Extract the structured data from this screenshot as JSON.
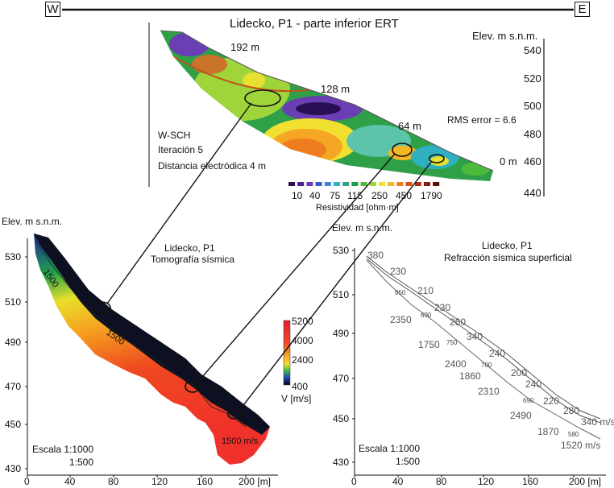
{
  "orientation": {
    "west": "W",
    "east": "E"
  },
  "ert": {
    "title": "Lidecko, P1 - parte inferior   ERT",
    "elev_label": "Elev. m s.n.m.",
    "elev_ticks": [
      "540",
      "520",
      "500",
      "480",
      "460",
      "440"
    ],
    "distance_labels": [
      "192 m",
      "128 m",
      "64 m",
      "0 m"
    ],
    "rms": "RMS error = 6.6",
    "method": "W-SCH",
    "iteration": "Iteración 5",
    "electrode_spacing": "Distancia electródica 4 m",
    "resistivity_ticks": [
      "10",
      "40",
      "75",
      "115",
      "250",
      "450",
      "1790"
    ],
    "resistivity_label": "Resistividad [ohm·m]",
    "resistivity_colors": [
      "#2a0f55",
      "#4b1e8e",
      "#6a3fb4",
      "#3d58c8",
      "#3f86d6",
      "#2fb0c0",
      "#2fa48a",
      "#1f9a4c",
      "#4cba3a",
      "#9fd43a",
      "#f2e030",
      "#f5b625",
      "#ef7d1f",
      "#e04a1c",
      "#b5291a",
      "#8c1a10",
      "#5b0c08"
    ]
  },
  "seismic": {
    "elev_label": "Elev. m s.n.m.",
    "title_line1": "Lidecko, P1",
    "title_line2": "Tomografía sísmica",
    "y_ticks": [
      "530",
      "510",
      "490",
      "470",
      "450",
      "430"
    ],
    "x_ticks": [
      "0",
      "40",
      "80",
      "120",
      "160",
      "200 [m]"
    ],
    "contour_labels": [
      "1500",
      "1500",
      "1500 m/s"
    ],
    "velocity_ticks": [
      "5200",
      "4000",
      "2400",
      "400"
    ],
    "velocity_label": "V [m/s]",
    "scale_line1": "Escala 1:1000",
    "scale_line2": "1:500"
  },
  "refraction": {
    "elev_label": "Elev. m s.n.m.",
    "title_line1": "Lidecko, P1",
    "title_line2": "Refracción sísmica superficial",
    "y_ticks": [
      "530",
      "510",
      "490",
      "470",
      "450",
      "430"
    ],
    "x_ticks": [
      "0",
      "40",
      "80",
      "120",
      "160",
      "200 [m]"
    ],
    "layer1_velocities": [
      "380",
      "230",
      "210",
      "230",
      "260",
      "340",
      "240",
      "200",
      "240",
      "220",
      "280",
      "340 m/s"
    ],
    "layer2_velocities": [
      "650",
      "690",
      "750",
      "700",
      "690",
      "580"
    ],
    "layer3_velocities": [
      "2350",
      "1750",
      "2400",
      "1860",
      "2310",
      "2490",
      "1870",
      "1520 m/s"
    ],
    "scale_line1": "Escala 1:1000",
    "scale_line2": "1:500"
  }
}
